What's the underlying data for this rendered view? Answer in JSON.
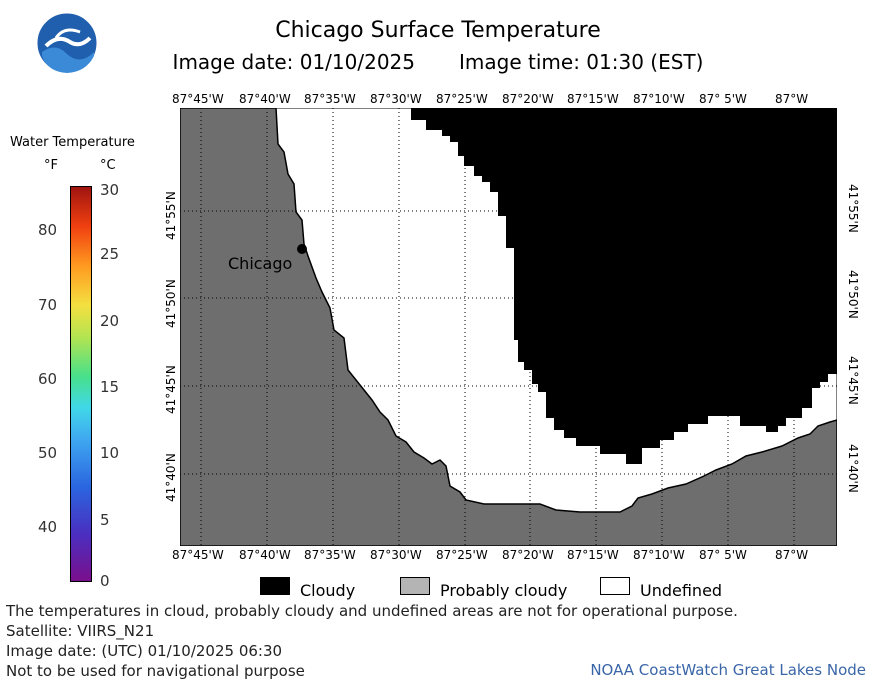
{
  "header": {
    "title": "Chicago Surface Temperature",
    "image_date": "Image date: 01/10/2025",
    "image_time": "Image time: 01:30 (EST)"
  },
  "map": {
    "longitude_labels": [
      "87°45'W",
      "87°40'W",
      "87°35'W",
      "87°30'W",
      "87°25'W",
      "87°20'W",
      "87°15'W",
      "87°10'W",
      "87° 5'W",
      "87°W"
    ],
    "latitude_labels": [
      "41°55'N",
      "41°50'N",
      "41°45'N",
      "41°40'N"
    ],
    "city_label": "Chicago",
    "colors": {
      "land": "#6e6e6e",
      "undefined": "#ffffff",
      "cloudy": "#000000",
      "grid": "#000000"
    }
  },
  "legend": {
    "title": "Water Temperature",
    "unit_f": "°F",
    "unit_c": "°C",
    "ticks_f": [
      "80",
      "70",
      "60",
      "50",
      "40"
    ],
    "ticks_c": [
      "30",
      "25",
      "20",
      "15",
      "10",
      "5",
      "0"
    ],
    "cover": [
      {
        "label": "Cloudy",
        "color": "#000000"
      },
      {
        "label": "Probably cloudy",
        "color": "#b4b4b4"
      },
      {
        "label": "Undefined",
        "color": "#ffffff"
      }
    ]
  },
  "footer": {
    "disclaimer": "The temperatures in cloud, probably cloudy and undefined areas are not for operational purpose.",
    "satellite": "Satellite: VIIRS_N21",
    "utc_date": "Image date: (UTC) 01/10/2025  06:30",
    "navigation": "Not to be used for navigational purpose",
    "credit": "NOAA CoastWatch Great Lakes Node"
  }
}
